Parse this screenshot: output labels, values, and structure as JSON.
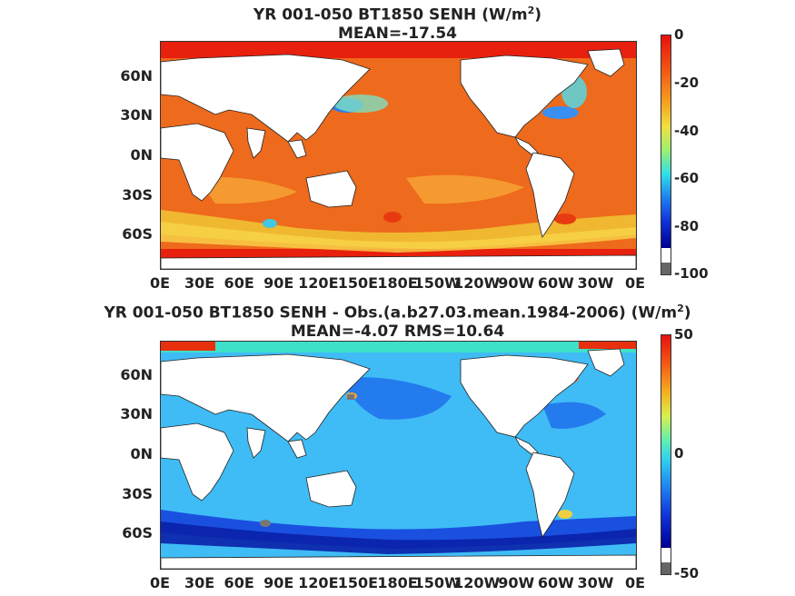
{
  "panels": [
    {
      "title_line1": "YR 001-050 BT1850  SENH (W/m",
      "title_sup": "2",
      "title_end": ")",
      "title_line2": "MEAN=-17.54",
      "colorbar": {
        "ticks": [
          "0",
          "-20",
          "-40",
          "-60",
          "-80",
          "-100"
        ],
        "range": [
          -100,
          0
        ]
      },
      "ocean_color": "#ee6a1c"
    },
    {
      "title_line1": "YR 001-050 BT1850 SENH - Obs.(a.b27.03.mean.1984-2006) (W/m",
      "title_sup": "2",
      "title_end": ")",
      "title_line2": "MEAN=-4.07 RMS=10.64",
      "colorbar": {
        "ticks": [
          "50",
          "0",
          "-50"
        ],
        "range": [
          -50,
          50
        ]
      },
      "ocean_color": "#3fbcf5"
    }
  ],
  "axes": {
    "lat_labels": [
      "60N",
      "30N",
      "0N",
      "30S",
      "60S"
    ],
    "lon_labels": [
      "0E",
      "30E",
      "60E",
      "90E",
      "120E",
      "150E",
      "180E",
      "150W",
      "120W",
      "90W",
      "60W",
      "30W",
      "0E"
    ]
  },
  "colors": {
    "land": "#ffffff",
    "frame": "#333333"
  }
}
